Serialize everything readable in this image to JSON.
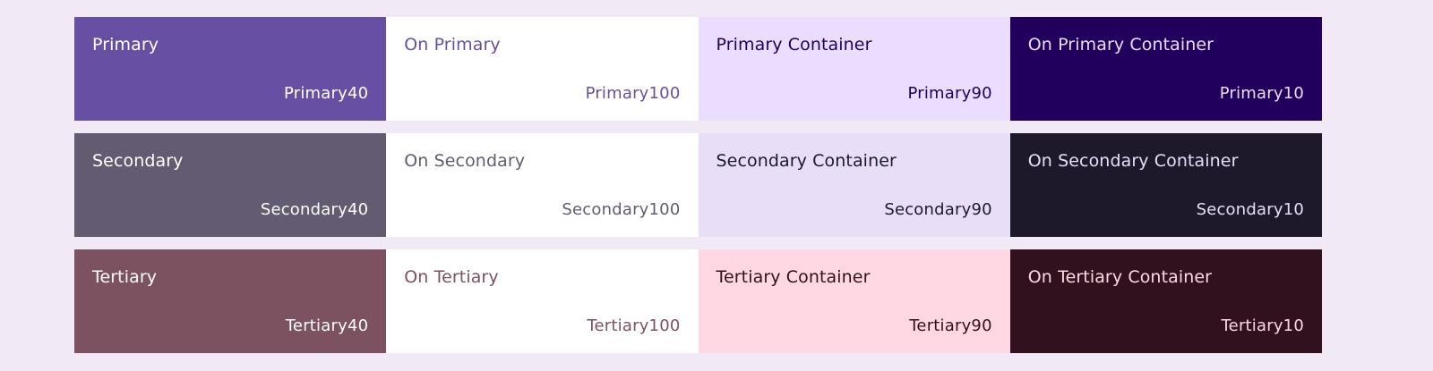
{
  "rows": [
    {
      "cells": [
        {
          "name": "Primary",
          "tone": "Primary40",
          "bg": "#6750A4",
          "fg": "#FFFFFF"
        },
        {
          "name": "On Primary",
          "tone": "Primary100",
          "bg": "#FFFFFF",
          "fg": "#6750A4"
        },
        {
          "name": "Primary Container",
          "tone": "Primary90",
          "bg": "#EADDFF",
          "fg": "#21005D"
        },
        {
          "name": "On Primary Container",
          "tone": "Primary10",
          "bg": "#21005D",
          "fg": "#EADDFF"
        }
      ]
    },
    {
      "cells": [
        {
          "name": "Secondary",
          "tone": "Secondary40",
          "bg": "#625B71",
          "fg": "#FFFFFF"
        },
        {
          "name": "On Secondary",
          "tone": "Secondary100",
          "bg": "#FFFFFF",
          "fg": "#625B71"
        },
        {
          "name": "Secondary Container",
          "tone": "Secondary90",
          "bg": "#E8DEF8",
          "fg": "#1D192B"
        },
        {
          "name": "On Secondary Container",
          "tone": "Secondary10",
          "bg": "#1D192B",
          "fg": "#E8DEF8"
        }
      ]
    },
    {
      "cells": [
        {
          "name": "Tertiary",
          "tone": "Tertiary40",
          "bg": "#7D5260",
          "fg": "#FFFFFF"
        },
        {
          "name": "On Tertiary",
          "tone": "Tertiary100",
          "bg": "#FFFFFF",
          "fg": "#7D5260"
        },
        {
          "name": "Tertiary Container",
          "tone": "Tertiary90",
          "bg": "#FFD8E4",
          "fg": "#31111D"
        },
        {
          "name": "On Tertiary Container",
          "tone": "Tertiary10",
          "bg": "#31111D",
          "fg": "#FFD8E4"
        }
      ]
    }
  ]
}
